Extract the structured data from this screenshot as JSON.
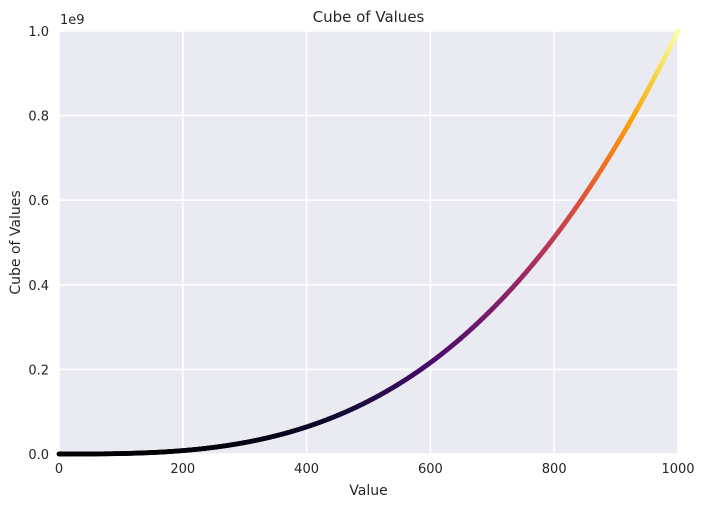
{
  "chart_data": {
    "type": "scatter",
    "title": "Cube of Values",
    "xlabel": "Value",
    "ylabel": "Cube of Values",
    "y_scale_label": "1e9",
    "x": {
      "min": 0,
      "max": 1000,
      "step": 1
    },
    "y_formula": "x^3",
    "xlim": [
      0,
      1000
    ],
    "ylim": [
      0,
      1000000000
    ],
    "xticks": [
      0,
      200,
      400,
      600,
      800,
      1000
    ],
    "xtick_labels": [
      "0",
      "200",
      "400",
      "600",
      "800",
      "1000"
    ],
    "yticks": [
      0,
      200000000,
      400000000,
      600000000,
      800000000,
      1000000000
    ],
    "ytick_labels": [
      "0.0",
      "0.2",
      "0.4",
      "0.6",
      "0.8",
      "1.0"
    ],
    "grid": true,
    "colormap": "inferno",
    "style": "seaborn-darkgrid",
    "colors": {
      "plot_bg": "#EAEAF2",
      "grid": "#FFFFFF",
      "text": "#262626"
    }
  }
}
